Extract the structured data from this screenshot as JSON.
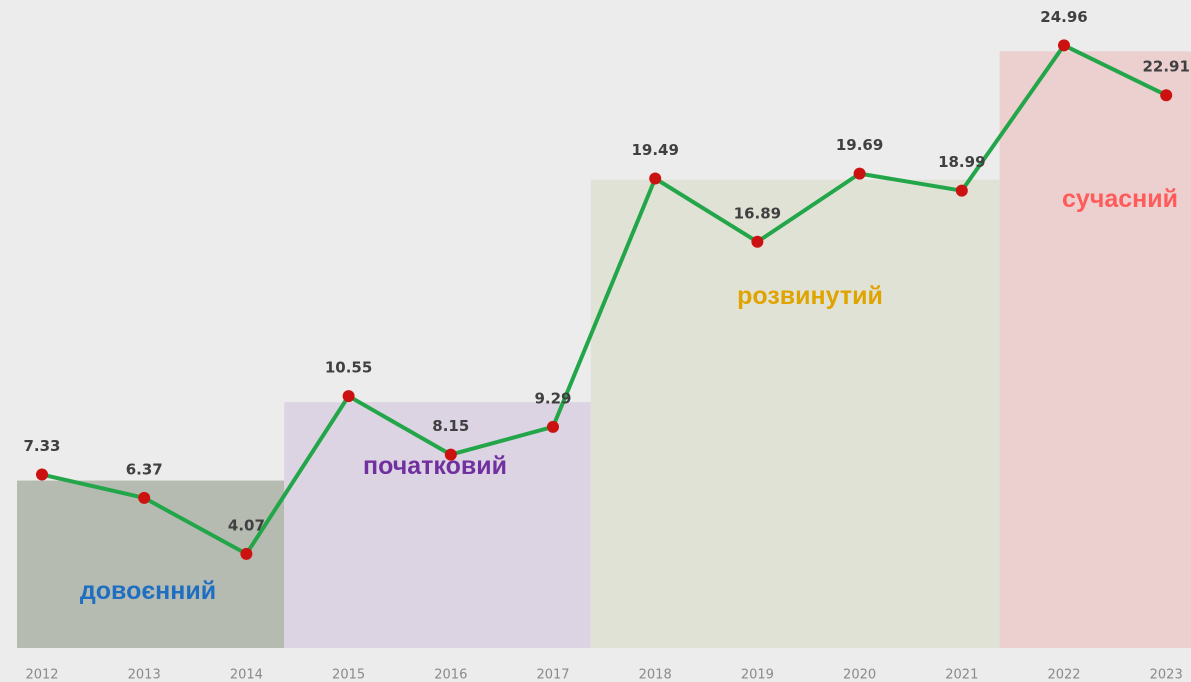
{
  "chart_data": {
    "type": "line",
    "categories": [
      "2012",
      "2013",
      "2014",
      "2015",
      "2016",
      "2017",
      "2018",
      "2019",
      "2020",
      "2021",
      "2022",
      "2023"
    ],
    "series": [
      {
        "values": [
          7.33,
          6.37,
          4.07,
          10.55,
          8.15,
          9.29,
          19.49,
          16.89,
          19.69,
          18.99,
          24.96,
          22.91
        ],
        "color": "#23a64a",
        "marker_color": "#cc1111"
      }
    ],
    "ylim": [
      0,
      26
    ],
    "periods": [
      {
        "label": "довоєнний",
        "from": "2012",
        "to": "2014",
        "color": "#b5bbb1",
        "text_color": "#1e6fc2"
      },
      {
        "label": "початковий",
        "from": "2015",
        "to": "2017",
        "color": "#dcd4e2",
        "text_color": "#7030a0"
      },
      {
        "label": "розвинутий",
        "from": "2018",
        "to": "2021",
        "color": "#e1e2d6",
        "text_color": "#e0a400"
      },
      {
        "label": "сучасний",
        "from": "2022",
        "to": "2023",
        "color": "#eccfcf",
        "text_color": "#ff5b5b"
      }
    ]
  }
}
